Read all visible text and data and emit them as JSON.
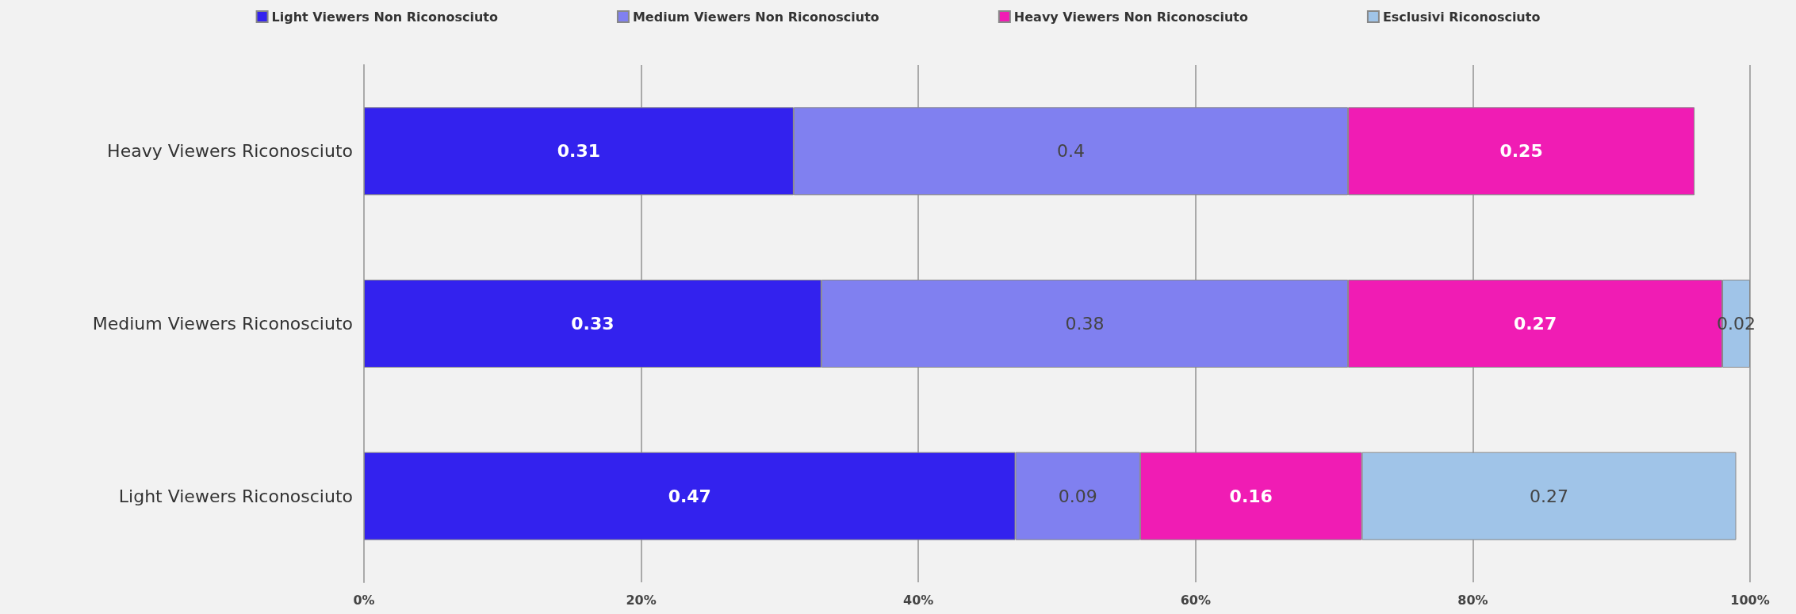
{
  "chart_data": {
    "type": "bar",
    "orientation": "horizontal",
    "stacked": true,
    "data_labels": true,
    "grid": "x",
    "legend": "top",
    "categories": [
      "Heavy Viewers Riconosciuto",
      "Medium Viewers Riconosciuto",
      "Light Viewers Riconosciuto"
    ],
    "series": [
      {
        "name": "Light Viewers Non Riconosciuto",
        "color": "#3322ee",
        "values": [
          0.31,
          0.33,
          0.47
        ]
      },
      {
        "name": "Medium Viewers Non Riconosciuto",
        "color": "#8080f0",
        "values": [
          0.4,
          0.38,
          0.09
        ]
      },
      {
        "name": "Heavy Viewers Non Riconosciuto",
        "color": "#f01cb4",
        "values": [
          0.25,
          0.27,
          0.16
        ]
      },
      {
        "name": "Esclusivi Riconosciuto",
        "color": "#a0c4e8",
        "values": [
          null,
          0.02,
          0.27
        ]
      }
    ],
    "xlim": [
      0,
      1
    ],
    "xticks": [
      {
        "value": 0,
        "label": "0%"
      },
      {
        "value": 0.2,
        "label": "20%"
      },
      {
        "value": 0.4,
        "label": "40%"
      },
      {
        "value": 0.6,
        "label": "60%"
      },
      {
        "value": 0.8,
        "label": "80%"
      },
      {
        "value": 1,
        "label": "100%"
      }
    ]
  }
}
